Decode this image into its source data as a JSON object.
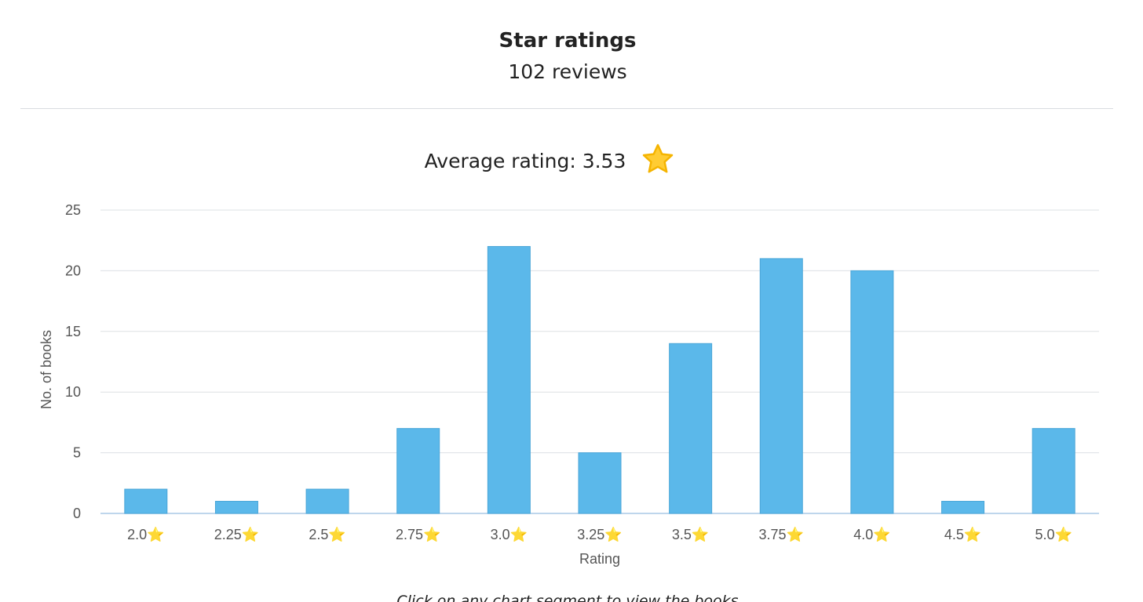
{
  "header": {
    "title": "Star ratings",
    "subtitle": "102 reviews"
  },
  "average": {
    "label": "Average rating: 3.53",
    "icon": "star-icon"
  },
  "footer": {
    "hint": "Click on any chart segment to view the books"
  },
  "colors": {
    "bar": "#5bb8ea",
    "bar_stroke": "#4aa6d8",
    "star_fill": "#ffcc33",
    "star_stroke": "#f5b400",
    "grid": "#dde0e4",
    "baseline": "#a9c8e6"
  },
  "chart_data": {
    "type": "bar",
    "categories": [
      "2.0⭐",
      "2.25⭐",
      "2.5⭐",
      "2.75⭐",
      "3.0⭐",
      "3.25⭐",
      "3.5⭐",
      "3.75⭐",
      "4.0⭐",
      "4.5⭐",
      "5.0⭐"
    ],
    "values": [
      2,
      1,
      2,
      7,
      22,
      5,
      14,
      21,
      20,
      1,
      7
    ],
    "xlabel": "Rating",
    "ylabel": "No. of books",
    "ylim": [
      0,
      25
    ],
    "yticks": [
      0,
      5,
      10,
      15,
      20,
      25
    ],
    "grid": true,
    "legend": "none"
  }
}
